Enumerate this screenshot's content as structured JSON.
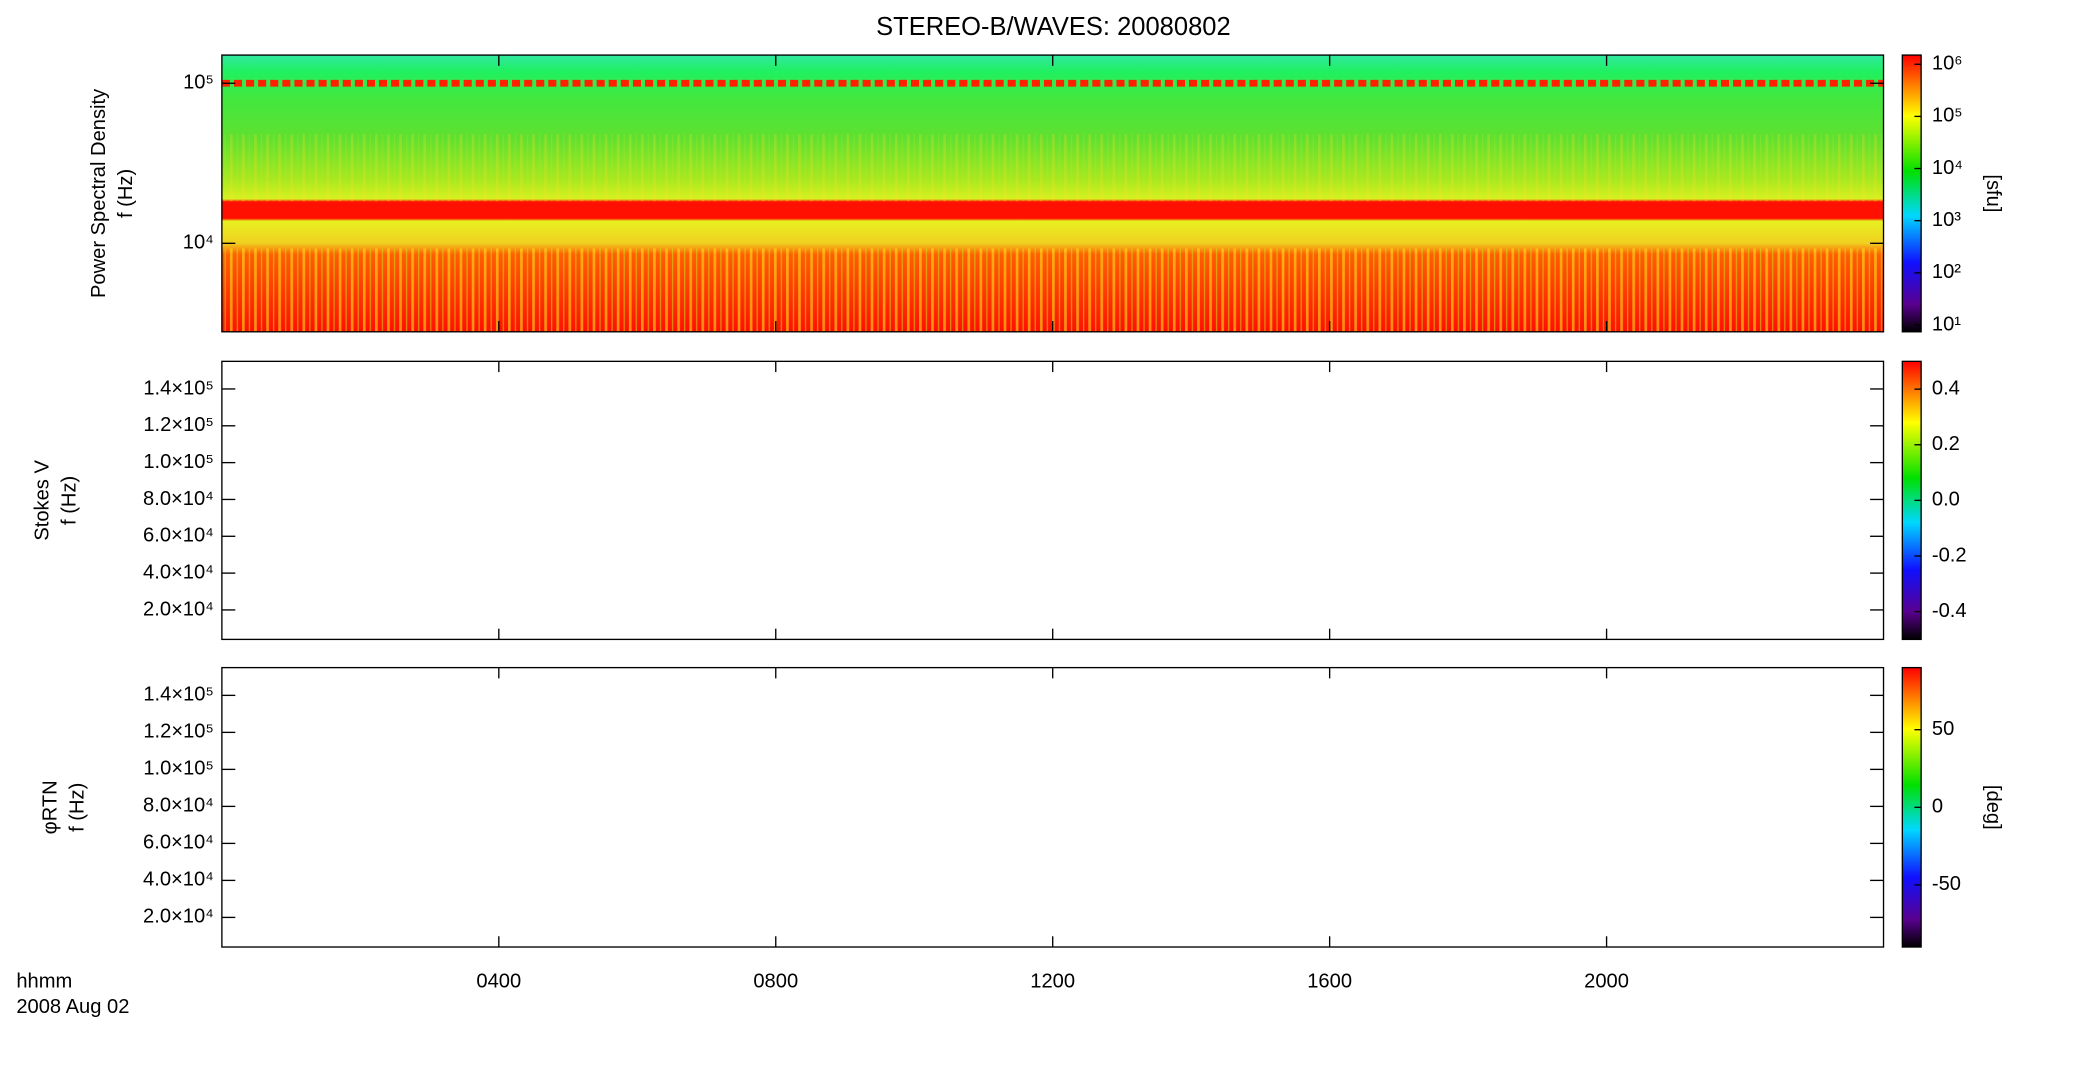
{
  "chart_data": {
    "type": "spectrogram",
    "title": "STEREO-B/WAVES: 20080802",
    "xlabel": [
      "hhmm",
      "2008 Aug 02"
    ],
    "xlim": [
      0,
      24
    ],
    "xticks": [
      {
        "value": 4,
        "label": "0400"
      },
      {
        "value": 8,
        "label": "0800"
      },
      {
        "value": 12,
        "label": "1200"
      },
      {
        "value": 16,
        "label": "1600"
      },
      {
        "value": 20,
        "label": "2000"
      }
    ],
    "panels": [
      {
        "ylabel": [
          "Power Spectral Density",
          "f (Hz)"
        ],
        "ylog": true,
        "ylim": [
          2800,
          150000
        ],
        "yticks": [
          {
            "value": 10000,
            "label": "10⁴"
          },
          {
            "value": 100000,
            "label": "10⁵"
          }
        ],
        "zlog": true,
        "zlim": [
          7.4,
          1500000
        ],
        "zlabel": "[sfu]",
        "zticks": [
          {
            "value": 10,
            "label": "10¹"
          },
          {
            "value": 100,
            "label": "10²"
          },
          {
            "value": 1000,
            "label": "10³"
          },
          {
            "value": 10000,
            "label": "10⁴"
          },
          {
            "value": 100000,
            "label": "10⁵"
          },
          {
            "value": 1000000,
            "label": "10⁶"
          }
        ]
      },
      {
        "ylabel": [
          "Stokes V",
          "f (Hz)"
        ],
        "ylog": false,
        "ylim": [
          4000,
          155000
        ],
        "yticks": [
          {
            "value": 20000,
            "label": "2.0×10⁴"
          },
          {
            "value": 40000,
            "label": "4.0×10⁴"
          },
          {
            "value": 60000,
            "label": "6.0×10⁴"
          },
          {
            "value": 80000,
            "label": "8.0×10⁴"
          },
          {
            "value": 100000,
            "label": "1.0×10⁵"
          },
          {
            "value": 120000,
            "label": "1.2×10⁵"
          },
          {
            "value": 140000,
            "label": "1.4×10⁵"
          }
        ],
        "zlog": false,
        "zlim": [
          -0.5,
          0.5
        ],
        "zticks": [
          -0.4,
          -0.2,
          {
            "value": 0,
            "label": "0.0"
          },
          0.2,
          0.4
        ]
      },
      {
        "ylabel": [
          "φRTN",
          "f (Hz)"
        ],
        "ylog": false,
        "ylim": [
          4000,
          155000
        ],
        "yticks": [
          {
            "value": 20000,
            "label": "2.0×10⁴"
          },
          {
            "value": 40000,
            "label": "4.0×10⁴"
          },
          {
            "value": 60000,
            "label": "6.0×10⁴"
          },
          {
            "value": 80000,
            "label": "8.0×10⁴"
          },
          {
            "value": 100000,
            "label": "1.0×10⁵"
          },
          {
            "value": 120000,
            "label": "1.2×10⁵"
          },
          {
            "value": 140000,
            "label": "1.4×10⁵"
          }
        ],
        "zlog": false,
        "zlim": [
          -90,
          90
        ],
        "zlabel": "[deg]",
        "zticks": [
          -50,
          0,
          50
        ]
      }
    ]
  }
}
